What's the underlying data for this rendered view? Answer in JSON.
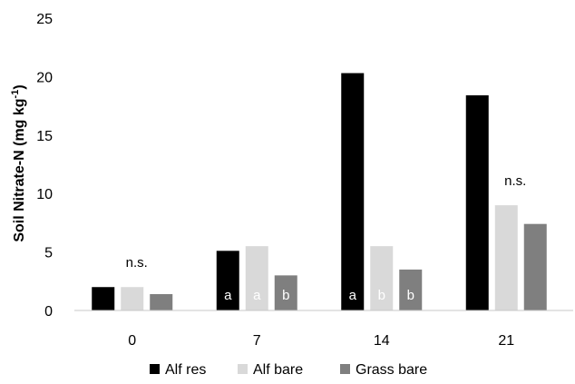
{
  "chart_data": {
    "type": "bar",
    "ylabel": "Soil Nitrate-N (mg kg",
    "ylabel_sup": "-1",
    "ylabel_close": ")",
    "ylim": [
      0,
      25
    ],
    "yticks": [
      0,
      5,
      10,
      15,
      20,
      25
    ],
    "categories": [
      "0",
      "7",
      "14",
      "21"
    ],
    "series": [
      {
        "name": "Alf res",
        "color": "#000000",
        "values": [
          2.0,
          5.1,
          20.3,
          18.4
        ]
      },
      {
        "name": "Alf bare",
        "color": "#d9d9d9",
        "values": [
          2.0,
          5.5,
          5.5,
          9.0
        ]
      },
      {
        "name": "Grass bare",
        "color": "#7f7f7f",
        "values": [
          1.4,
          3.0,
          3.5,
          7.4
        ]
      }
    ],
    "bar_labels": [
      [
        "",
        "",
        ""
      ],
      [
        "a",
        "a",
        "b"
      ],
      [
        "a",
        "b",
        "b"
      ],
      [
        "",
        "",
        ""
      ]
    ],
    "annotations": [
      {
        "category": "0",
        "text": "n.s."
      },
      {
        "category": "21",
        "text": "n.s."
      }
    ],
    "grid": false,
    "legend_position": "bottom"
  }
}
